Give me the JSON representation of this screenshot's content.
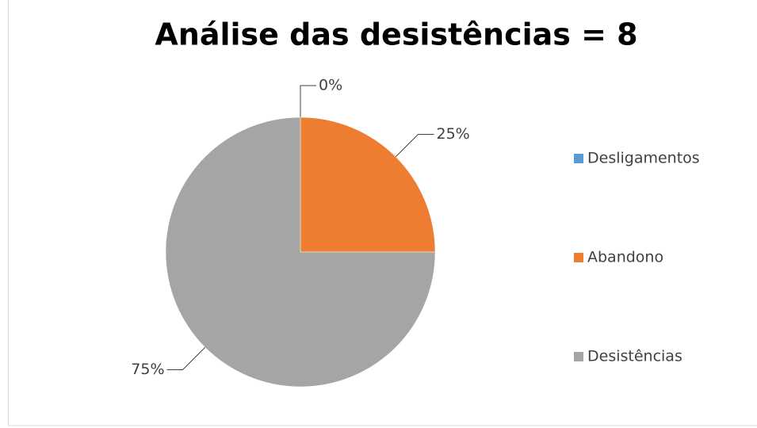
{
  "chart_data": {
    "type": "pie",
    "title": "Análise das desistências = 8",
    "categories": [
      "Desligamentos",
      "Abandono",
      "Desistências"
    ],
    "values": [
      0,
      25,
      75
    ],
    "value_labels": [
      "0%",
      "25%",
      "75%"
    ],
    "colors": [
      "#5b9bd5",
      "#ed7d31",
      "#a5a5a5"
    ],
    "legend": "right"
  }
}
